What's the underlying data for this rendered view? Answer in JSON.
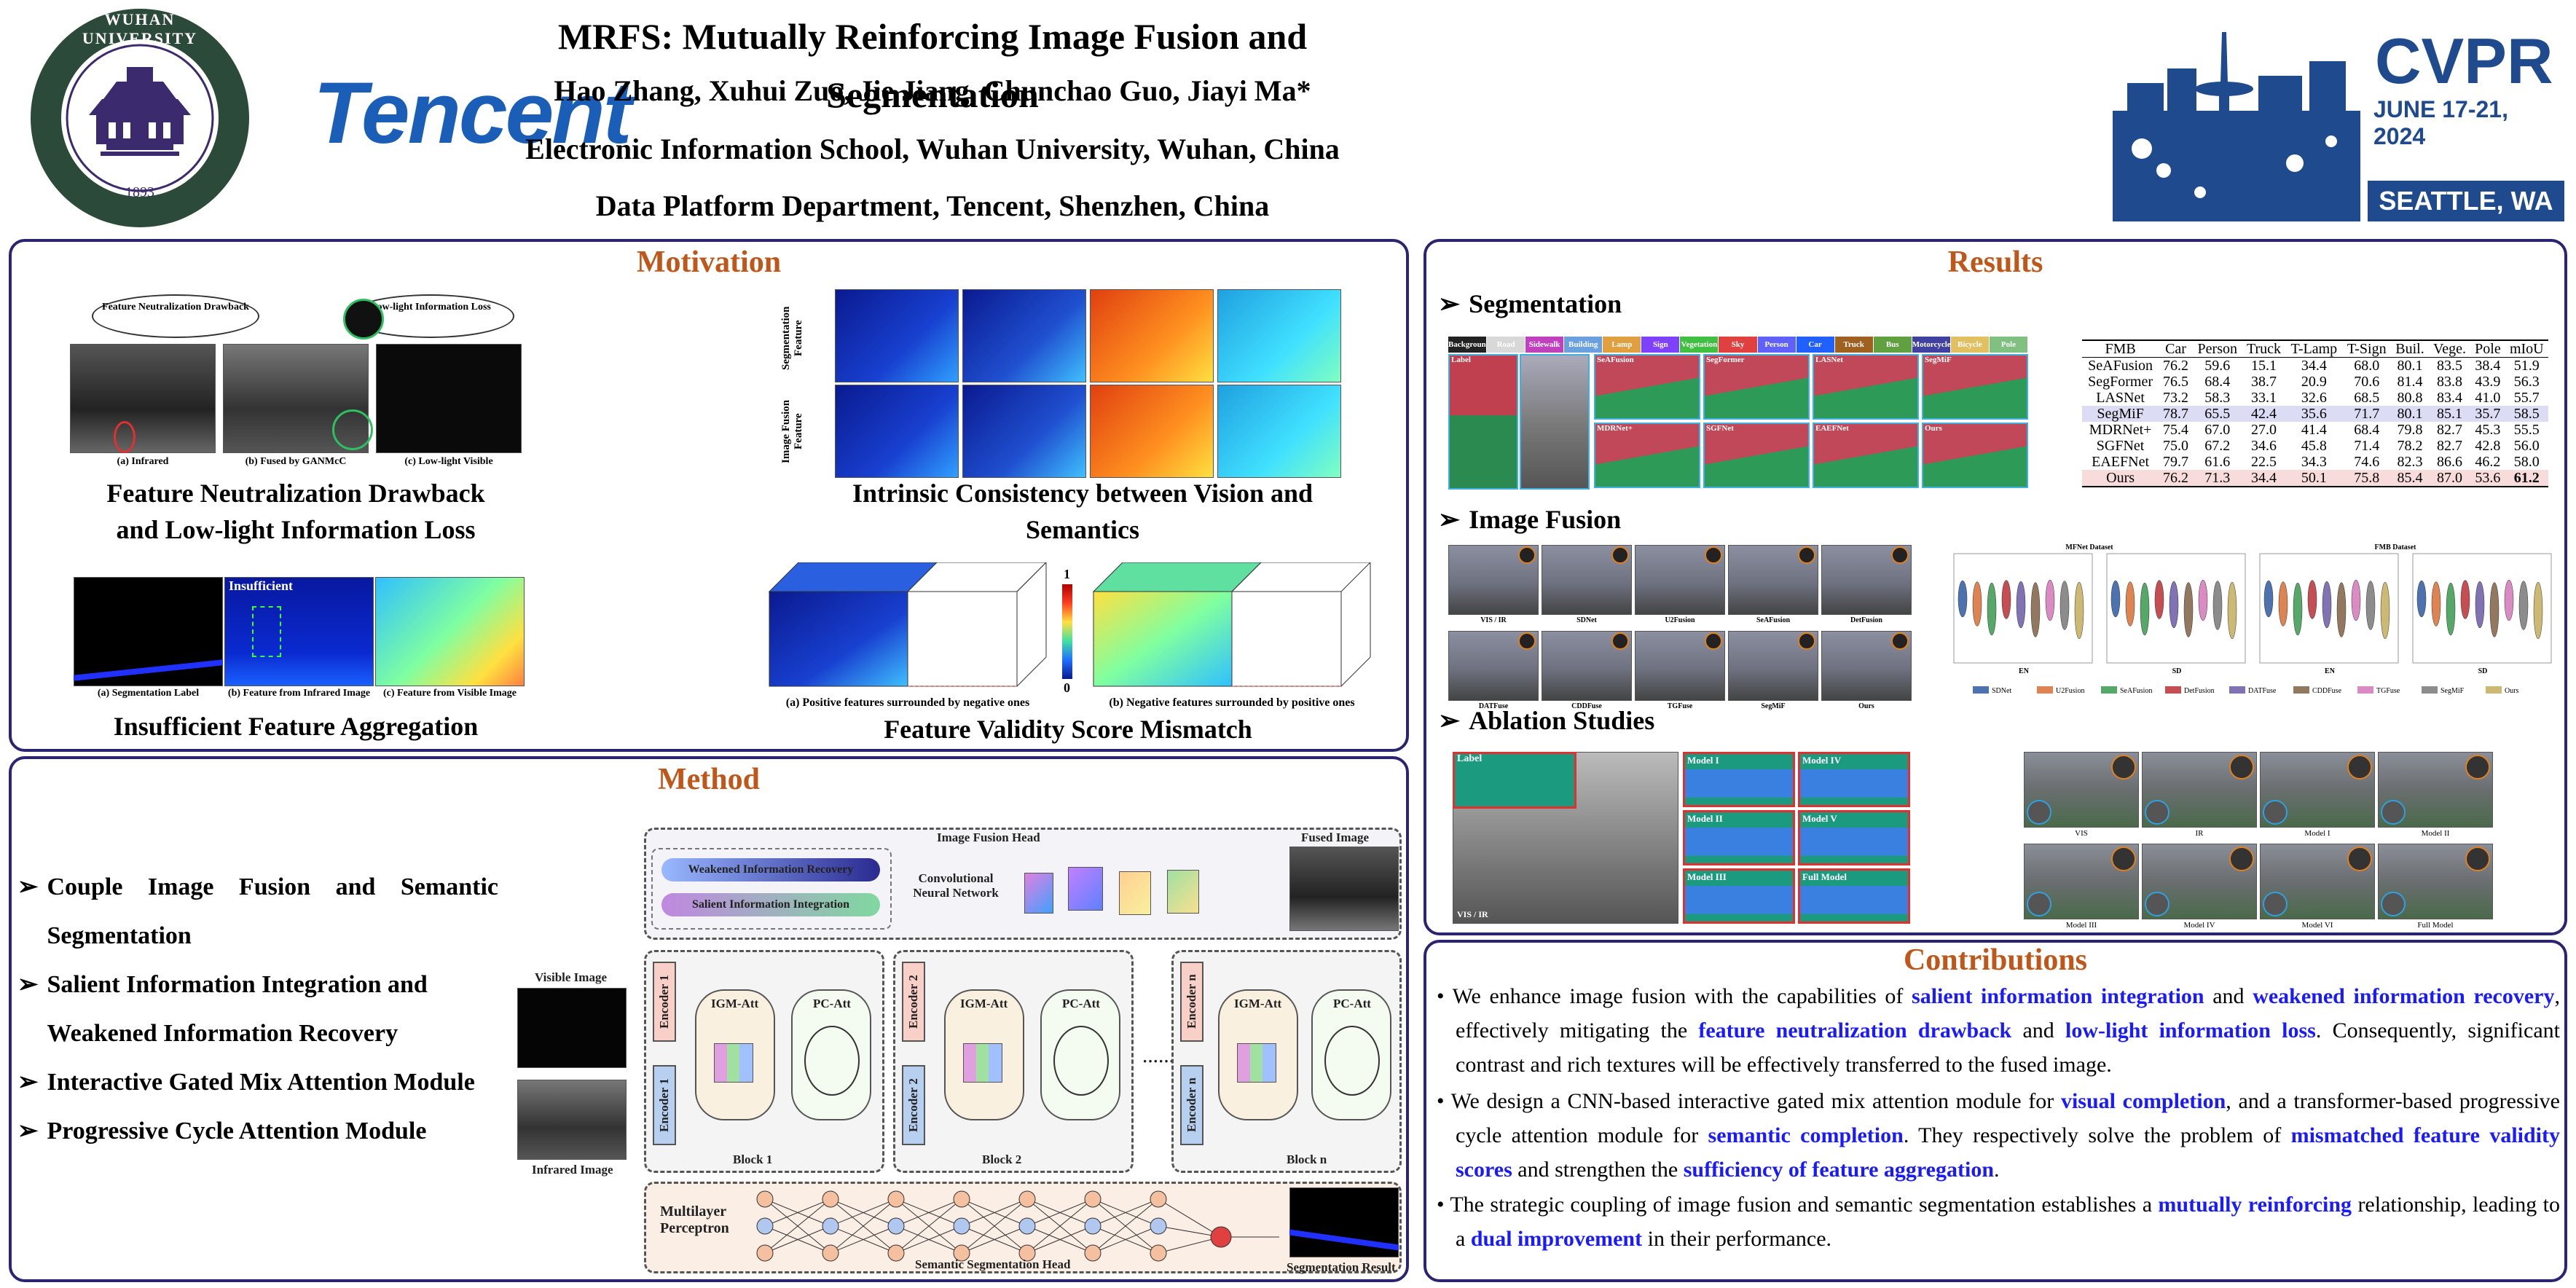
{
  "header": {
    "title": "MRFS: Mutually Reinforcing Image Fusion and Segmentation",
    "authors": "Hao Zhang, Xuhui Zuo, Jie Jiang, Chunchao Guo, Jiayi Ma*",
    "affil1": "Electronic Information School, Wuhan University, Wuhan, China",
    "affil2": "Data Platform Department, Tencent, Shenzhen, China",
    "whu_top": "WUHAN UNIVERSITY",
    "whu_year": "1893",
    "tencent": "Tencent",
    "cvpr": "CVPR",
    "cvpr_date": "JUNE 17-21, 2024",
    "cvpr_city": "SEATTLE, WA"
  },
  "motivation": {
    "title": "Motivation",
    "fig1_caption": "Feature Neutralization Drawback and  Low-light Information Loss",
    "fig1_bubble1": "Feature Neutralization Drawback",
    "fig1_bubble2": "Low-light Information Loss",
    "fig1_labels": [
      "(a) Infrared",
      "(b) Fused by GANMcC",
      "(c) Low-light Visible"
    ],
    "fig2_caption": "Intrinsic Consistency between Vision and Semantics",
    "fig2_row1": "Segmentation Feature",
    "fig2_row2": "Image Fusion Feature",
    "fig3_caption": "Insufficient Feature Aggregation",
    "fig3_word": "Insufficient",
    "fig3_labels": [
      "(a) Segmentation Label",
      "(b) Feature from Infrared Image",
      "(c) Feature from Visible Image"
    ],
    "fig4_caption": "Feature Validity Score Mismatch",
    "fig4_labels": [
      "(a) Positive features surrounded by negative ones",
      "(b) Negative features surrounded by positive ones"
    ],
    "fig4_scale": [
      "1",
      "0"
    ]
  },
  "method": {
    "title": "Method",
    "items": [
      "Couple Image Fusion and Semantic Segmentation",
      "Salient Information Integration and Weakened Information Recovery",
      "Interactive Gated Mix Attention Module",
      "Progressive Cycle Attention Module"
    ],
    "diagram": {
      "fusion_head": "Image Fusion Head",
      "weak": "Weakened Information Recovery",
      "salient": "Salient Information Integration",
      "cnn": "Convolutional Neural Network",
      "fused": "Fused Image",
      "visible": "Visible Image",
      "infrared": "Infrared Image",
      "enc1": "Encoder 1",
      "enc2": "Encoder 2",
      "encn": "Encoder n",
      "igm": "IGM-Att",
      "pc": "PC-Att",
      "block1": "Block 1",
      "block2": "Block 2",
      "blockn": "Block n",
      "dots": "·······",
      "mlp": "Multilayer Perceptron",
      "seg_head": "Semantic Segmentation Head",
      "seg_result": "Segmentation Result"
    }
  },
  "results": {
    "title": "Results",
    "seg_title": "Segmentation",
    "fusion_title": "Image Fusion",
    "ablation_title": "Ablation Studies",
    "seg_legend": [
      "Background",
      "Road",
      "Sidewalk",
      "Building",
      "Lamp",
      "Sign",
      "Vegetation",
      "Sky",
      "Person",
      "Car",
      "Truck",
      "Bus",
      "Motorcycle",
      "Bicycle",
      "Pole"
    ],
    "seg_legend_colors": [
      "#222222",
      "#d8d8d8",
      "#c040c0",
      "#6aa0e0",
      "#e0a040",
      "#8040ff",
      "#40c040",
      "#e04040",
      "#6060ff",
      "#2060ff",
      "#a06020",
      "#60a040",
      "#4040a0",
      "#e0c060",
      "#80c080"
    ],
    "seg_methods": [
      "Label",
      "SeAFusion",
      "SegFormer",
      "LASNet",
      "SegMiF",
      "MDRNet+",
      "SGFNet",
      "EAEFNet",
      "Ours"
    ],
    "table": {
      "headers": [
        "FMB",
        "Car",
        "Person",
        "Truck",
        "T-Lamp",
        "T-Sign",
        "Buil.",
        "Vege.",
        "Pole",
        "mIoU"
      ],
      "rows": [
        [
          "SeAFusion",
          "76.2",
          "59.6",
          "15.1",
          "34.4",
          "68.0",
          "80.1",
          "83.5",
          "38.4",
          "51.9"
        ],
        [
          "SegFormer",
          "76.5",
          "68.4",
          "38.7",
          "20.9",
          "70.6",
          "81.4",
          "83.8",
          "43.9",
          "56.3"
        ],
        [
          "LASNet",
          "73.2",
          "58.3",
          "33.1",
          "32.6",
          "68.5",
          "80.8",
          "83.4",
          "41.0",
          "55.7"
        ],
        [
          "SegMiF",
          "78.7",
          "65.5",
          "42.4",
          "35.6",
          "71.7",
          "80.1",
          "85.1",
          "35.7",
          "58.5"
        ],
        [
          "MDRNet+",
          "75.4",
          "67.0",
          "27.0",
          "41.4",
          "68.4",
          "79.8",
          "82.7",
          "45.3",
          "55.5"
        ],
        [
          "SGFNet",
          "75.0",
          "67.2",
          "34.6",
          "45.8",
          "71.4",
          "78.2",
          "82.7",
          "42.8",
          "56.0"
        ],
        [
          "EAEFNet",
          "79.7",
          "61.6",
          "22.5",
          "34.3",
          "74.6",
          "82.3",
          "86.6",
          "46.2",
          "58.0"
        ],
        [
          "Ours",
          "76.2",
          "71.3",
          "34.4",
          "50.1",
          "75.8",
          "85.4",
          "87.0",
          "53.6",
          "61.2"
        ]
      ]
    },
    "fusion_methods": [
      "VIS / IR",
      "SDNet",
      "U2Fusion",
      "SeAFusion",
      "DetFusion",
      "DATFuse",
      "CDDFuse",
      "TGFuse",
      "SegMiF",
      "Ours"
    ],
    "violin_titles": [
      "MFNet Dataset",
      "FMB Dataset"
    ],
    "violin_axes": [
      "EN",
      "SD",
      "EN",
      "SD"
    ],
    "violin_legend": [
      "SDNet",
      "U2Fusion",
      "SeAFusion",
      "DetFusion",
      "DATFuse",
      "CDDFuse",
      "TGFuse",
      "SegMiF",
      "Ours"
    ],
    "violin_colors": [
      "#4c72b0",
      "#dd8452",
      "#55a868",
      "#c44e52",
      "#8172b3",
      "#937860",
      "#da8bc3",
      "#8c8c8c",
      "#ccb974"
    ],
    "ablation_seg_labels": [
      "Label",
      "Model I",
      "Model IV",
      "Model II",
      "Model V",
      "Model III",
      "Full Model",
      "VIS / IR"
    ],
    "ablation_fusion_labels": [
      "VIS",
      "IR",
      "Model I",
      "Model II",
      "Model III",
      "Model IV",
      "Model VI",
      "Full Model"
    ]
  },
  "contributions": {
    "title": "Contributions"
  }
}
